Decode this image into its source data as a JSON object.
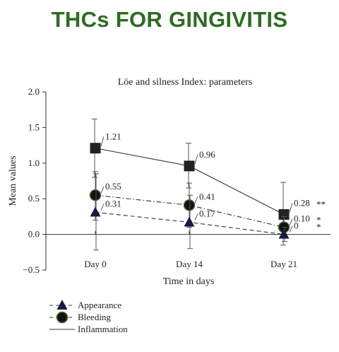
{
  "banner": {
    "title": "THCs FOR GINGIVITIS"
  },
  "chart_data": {
    "type": "line",
    "title": "Löe and silness Index: parameters",
    "xlabel": "Time in days",
    "ylabel": "Mean values",
    "categories": [
      "Day 0",
      "Day 14",
      "Day 21"
    ],
    "ylim": [
      -0.5,
      2.0
    ],
    "yticks": [
      "2.0",
      "1.5",
      "1.0",
      "0.5",
      "0.0",
      "−0.5"
    ],
    "ytick_values": [
      2.0,
      1.5,
      1.0,
      0.5,
      0.0,
      -0.5
    ],
    "grid": false,
    "legend_position": "bottom-left",
    "series": [
      {
        "name": "Inflammation",
        "marker": "square",
        "line": "solid",
        "values": [
          1.21,
          0.96,
          0.28
        ],
        "labels": [
          "1.21",
          "0.96",
          "0.28"
        ],
        "error_low": [
          0.8,
          0.65,
          -0.15
        ],
        "error_high": [
          1.62,
          1.28,
          0.73
        ],
        "significance": [
          "",
          "",
          "**"
        ]
      },
      {
        "name": "Bleeding",
        "marker": "circle",
        "line": "dashdot",
        "values": [
          0.55,
          0.41,
          0.1
        ],
        "labels": [
          "0.55",
          "0.41",
          "0.10"
        ],
        "error_low": [
          0.2,
          0.1,
          -0.05
        ],
        "error_high": [
          0.88,
          0.72,
          0.25
        ],
        "significance": [
          "",
          "",
          "*"
        ]
      },
      {
        "name": "Appearance",
        "marker": "triangle",
        "line": "dashed",
        "values": [
          0.31,
          0.17,
          0.0
        ],
        "labels": [
          "0.31",
          "0.17",
          "0"
        ],
        "error_low": [
          -0.22,
          -0.2,
          -0.1
        ],
        "error_high": [
          0.85,
          0.55,
          0.1
        ],
        "significance": [
          "",
          "",
          "*"
        ]
      }
    ],
    "legend": [
      "Appearance",
      "Bleeding",
      "Inflammation"
    ]
  }
}
